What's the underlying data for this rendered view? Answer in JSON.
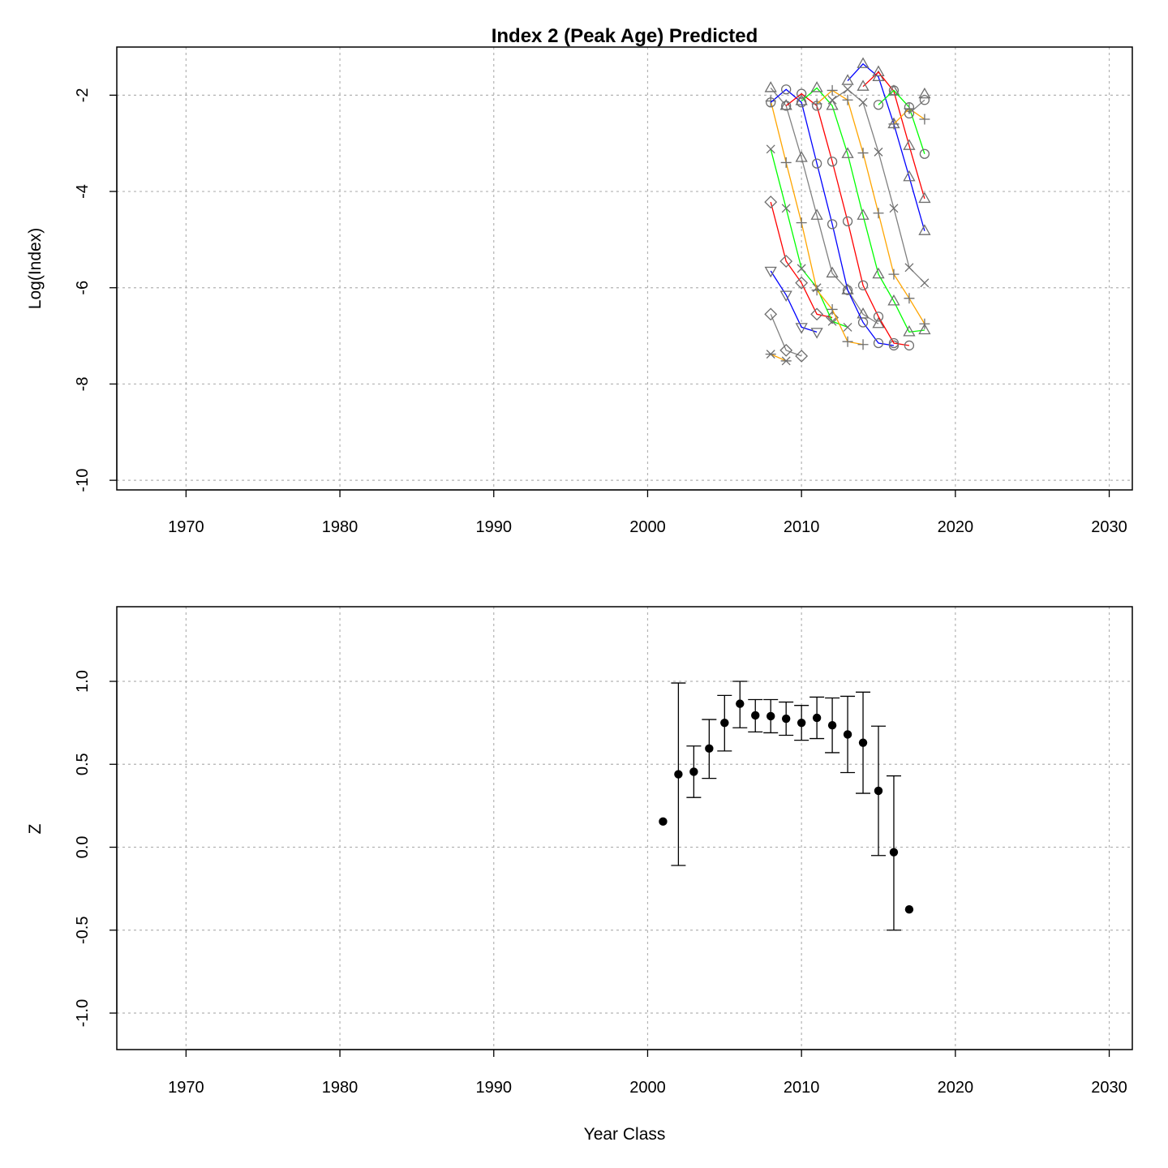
{
  "chart_data": [
    {
      "type": "line",
      "title": "Index 2 (Peak Age) Predicted",
      "xlabel": "",
      "ylabel": "Log(Index)",
      "xlim": [
        1965.5,
        2031.5
      ],
      "ylim": [
        -10.2,
        -1.0
      ],
      "xticks": [
        "1970",
        "1980",
        "1990",
        "2000",
        "2010",
        "2020",
        "2030"
      ],
      "yticks": [
        "-2",
        "-4",
        "-6",
        "-8",
        "-10"
      ],
      "grid": true,
      "legend": "none",
      "colors": [
        "#808080",
        "#0000ff",
        "#ff0000",
        "#ffa500",
        "#00ff00"
      ],
      "series": [
        {
          "x": [
            2008,
            2009
          ],
          "y": [
            -7.38,
            -7.52
          ],
          "marker": "asterisk",
          "color": "#ffa500"
        },
        {
          "x": [
            2008,
            2009,
            2010
          ],
          "y": [
            -6.55,
            -7.3,
            -7.42
          ],
          "marker": "diamond",
          "color": "#808080"
        },
        {
          "x": [
            2008,
            2009,
            2010,
            2011
          ],
          "y": [
            -5.65,
            -6.15,
            -6.82,
            -6.92
          ],
          "marker": "triangle-down",
          "color": "#0000ff"
        },
        {
          "x": [
            2008,
            2009,
            2010,
            2011,
            2012
          ],
          "y": [
            -4.22,
            -5.45,
            -5.9,
            -6.55,
            -6.62
          ],
          "marker": "diamond",
          "color": "#ff0000"
        },
        {
          "x": [
            2008,
            2009,
            2010,
            2011,
            2012,
            2013
          ],
          "y": [
            -3.12,
            -4.35,
            -5.6,
            -6.0,
            -6.7,
            -6.82
          ],
          "marker": "x",
          "color": "#00ff00"
        },
        {
          "x": [
            2008,
            2009,
            2010,
            2011,
            2012,
            2013,
            2014
          ],
          "y": [
            -2.12,
            -3.4,
            -4.65,
            -6.05,
            -6.45,
            -7.12,
            -7.18
          ],
          "marker": "plus",
          "color": "#ffa500"
        },
        {
          "x": [
            2008,
            2009,
            2010,
            2011,
            2012,
            2013,
            2014,
            2015
          ],
          "y": [
            -1.85,
            -2.22,
            -3.3,
            -4.5,
            -5.7,
            -6.05,
            -6.55,
            -6.75
          ],
          "marker": "triangle-up",
          "color": "#808080"
        },
        {
          "x": [
            2008,
            2009,
            2010,
            2011,
            2012,
            2013,
            2014,
            2015,
            2016
          ],
          "y": [
            -2.15,
            -1.88,
            -2.15,
            -3.42,
            -4.68,
            -6.05,
            -6.72,
            -7.15,
            -7.2
          ],
          "marker": "circle",
          "color": "#0000ff"
        },
        {
          "x": [
            2009,
            2010,
            2011,
            2012,
            2013,
            2014,
            2015,
            2016,
            2017
          ],
          "y": [
            -2.22,
            -1.97,
            -2.22,
            -3.38,
            -4.62,
            -5.95,
            -6.6,
            -7.15,
            -7.2
          ],
          "marker": "circle",
          "color": "#ff0000"
        },
        {
          "x": [
            2010,
            2011,
            2012,
            2013,
            2014,
            2015,
            2016,
            2017,
            2018
          ],
          "y": [
            -2.12,
            -1.85,
            -2.22,
            -3.22,
            -4.5,
            -5.72,
            -6.28,
            -6.92,
            -6.88
          ],
          "marker": "triangle-up",
          "color": "#00ff00"
        },
        {
          "x": [
            2011,
            2012,
            2013,
            2014,
            2015,
            2016,
            2017,
            2018
          ],
          "y": [
            -2.18,
            -1.9,
            -2.1,
            -3.2,
            -4.45,
            -5.72,
            -6.22,
            -6.75
          ],
          "marker": "plus",
          "color": "#ffa500"
        },
        {
          "x": [
            2012,
            2013,
            2014,
            2015,
            2016,
            2017,
            2018
          ],
          "y": [
            -2.1,
            -1.88,
            -2.15,
            -3.18,
            -4.35,
            -5.58,
            -5.9
          ],
          "marker": "x",
          "color": "#808080"
        },
        {
          "x": [
            2013,
            2014,
            2015,
            2016,
            2017,
            2018
          ],
          "y": [
            -1.7,
            -1.35,
            -1.62,
            -2.6,
            -3.7,
            -4.82
          ],
          "marker": "triangle-up",
          "color": "#0000ff"
        },
        {
          "x": [
            2014,
            2015,
            2016,
            2017,
            2018
          ],
          "y": [
            -1.82,
            -1.52,
            -1.92,
            -3.05,
            -4.15
          ],
          "marker": "triangle-up",
          "color": "#ff0000"
        },
        {
          "x": [
            2015,
            2016,
            2017,
            2018
          ],
          "y": [
            -2.2,
            -1.9,
            -2.25,
            -3.22
          ],
          "marker": "circle",
          "color": "#00ff00"
        },
        {
          "x": [
            2016,
            2017,
            2018
          ],
          "y": [
            -2.6,
            -2.28,
            -2.5
          ],
          "marker": "plus",
          "color": "#ffa500"
        },
        {
          "x": [
            2017,
            2018
          ],
          "y": [
            -2.38,
            -2.1
          ],
          "marker": "circle",
          "color": "#808080"
        },
        {
          "x": [
            2018
          ],
          "y": [
            -1.98
          ],
          "marker": "triangle-up",
          "color": "#808080"
        }
      ]
    },
    {
      "type": "scatter",
      "title": "",
      "xlabel": "Year Class",
      "ylabel": "Z",
      "xlim": [
        1965.5,
        2031.5
      ],
      "ylim": [
        -1.22,
        1.45
      ],
      "xticks": [
        "1970",
        "1980",
        "1990",
        "2000",
        "2010",
        "2020",
        "2030"
      ],
      "yticks": [
        "1.0",
        "0.5",
        "0.0",
        "-0.5",
        "-1.0"
      ],
      "grid": true,
      "legend": "none",
      "points": [
        {
          "x": 2001,
          "y": 0.155
        },
        {
          "x": 2002,
          "y": 0.44,
          "lo": -0.11,
          "hi": 0.99
        },
        {
          "x": 2003,
          "y": 0.455,
          "lo": 0.3,
          "hi": 0.61
        },
        {
          "x": 2004,
          "y": 0.595,
          "lo": 0.415,
          "hi": 0.77
        },
        {
          "x": 2005,
          "y": 0.75,
          "lo": 0.58,
          "hi": 0.915
        },
        {
          "x": 2006,
          "y": 0.865,
          "lo": 0.72,
          "hi": 1.0
        },
        {
          "x": 2007,
          "y": 0.795,
          "lo": 0.695,
          "hi": 0.89
        },
        {
          "x": 2008,
          "y": 0.79,
          "lo": 0.69,
          "hi": 0.89
        },
        {
          "x": 2009,
          "y": 0.775,
          "lo": 0.675,
          "hi": 0.875
        },
        {
          "x": 2010,
          "y": 0.75,
          "lo": 0.645,
          "hi": 0.855
        },
        {
          "x": 2011,
          "y": 0.78,
          "lo": 0.655,
          "hi": 0.905
        },
        {
          "x": 2012,
          "y": 0.735,
          "lo": 0.57,
          "hi": 0.9
        },
        {
          "x": 2013,
          "y": 0.68,
          "lo": 0.45,
          "hi": 0.91
        },
        {
          "x": 2014,
          "y": 0.63,
          "lo": 0.325,
          "hi": 0.935
        },
        {
          "x": 2015,
          "y": 0.34,
          "lo": -0.05,
          "hi": 0.73
        },
        {
          "x": 2016,
          "y": -0.03,
          "lo": -0.5,
          "hi": 0.43
        },
        {
          "x": 2017,
          "y": -0.375
        }
      ]
    }
  ]
}
